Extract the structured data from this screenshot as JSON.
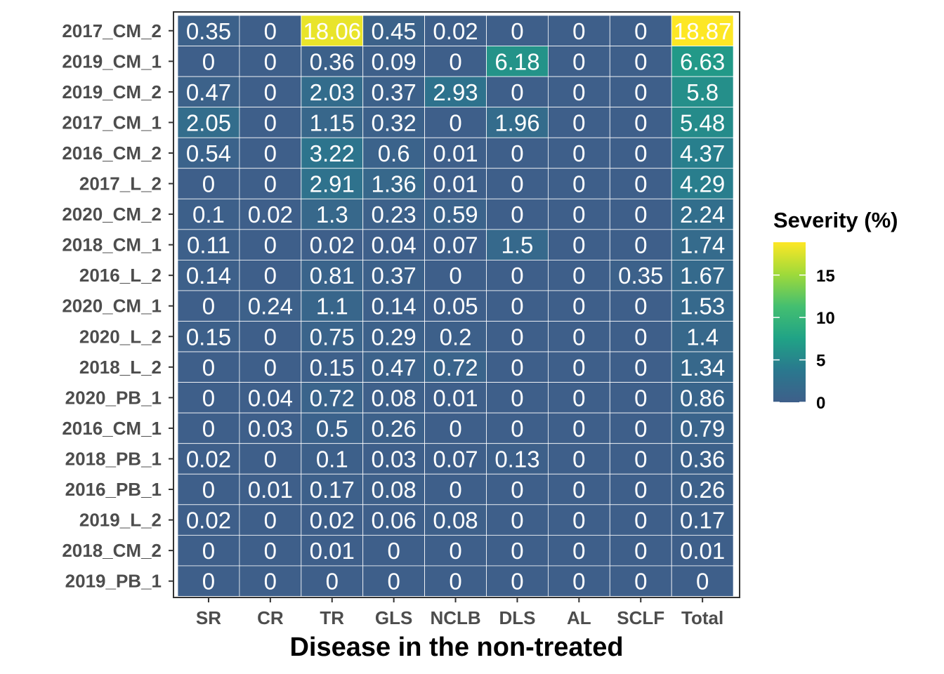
{
  "chart_data": {
    "type": "heatmap",
    "xlabel": "Disease in the non-treated",
    "ylabel": "",
    "x_categories": [
      "SR",
      "CR",
      "TR",
      "GLS",
      "NCLB",
      "DLS",
      "AL",
      "SCLF",
      "Total"
    ],
    "y_categories": [
      "2017_CM_2",
      "2019_CM_1",
      "2019_CM_2",
      "2017_CM_1",
      "2016_CM_2",
      "2017_L_2",
      "2020_CM_2",
      "2018_CM_1",
      "2016_L_2",
      "2020_CM_1",
      "2020_L_2",
      "2018_L_2",
      "2020_PB_1",
      "2016_CM_1",
      "2018_PB_1",
      "2016_PB_1",
      "2019_L_2",
      "2018_CM_2",
      "2019_PB_1"
    ],
    "cells": [
      [
        "0.35",
        "0",
        "18.06",
        "0.45",
        "0.02",
        "0",
        "0",
        "0",
        "18.87"
      ],
      [
        "0",
        "0",
        "0.36",
        "0.09",
        "0",
        "6.18",
        "0",
        "0",
        "6.63"
      ],
      [
        "0.47",
        "0",
        "2.03",
        "0.37",
        "2.93",
        "0",
        "0",
        "0",
        "5.8"
      ],
      [
        "2.05",
        "0",
        "1.15",
        "0.32",
        "0",
        "1.96",
        "0",
        "0",
        "5.48"
      ],
      [
        "0.54",
        "0",
        "3.22",
        "0.6",
        "0.01",
        "0",
        "0",
        "0",
        "4.37"
      ],
      [
        "0",
        "0",
        "2.91",
        "1.36",
        "0.01",
        "0",
        "0",
        "0",
        "4.29"
      ],
      [
        "0.1",
        "0.02",
        "1.3",
        "0.23",
        "0.59",
        "0",
        "0",
        "0",
        "2.24"
      ],
      [
        "0.11",
        "0",
        "0.02",
        "0.04",
        "0.07",
        "1.5",
        "0",
        "0",
        "1.74"
      ],
      [
        "0.14",
        "0",
        "0.81",
        "0.37",
        "0",
        "0",
        "0",
        "0.35",
        "1.67"
      ],
      [
        "0",
        "0.24",
        "1.1",
        "0.14",
        "0.05",
        "0",
        "0",
        "0",
        "1.53"
      ],
      [
        "0.15",
        "0",
        "0.75",
        "0.29",
        "0.2",
        "0",
        "0",
        "0",
        "1.4"
      ],
      [
        "0",
        "0",
        "0.15",
        "0.47",
        "0.72",
        "0",
        "0",
        "0",
        "1.34"
      ],
      [
        "0",
        "0.04",
        "0.72",
        "0.08",
        "0.01",
        "0",
        "0",
        "0",
        "0.86"
      ],
      [
        "0",
        "0.03",
        "0.5",
        "0.26",
        "0",
        "0",
        "0",
        "0",
        "0.79"
      ],
      [
        "0.02",
        "0",
        "0.1",
        "0.03",
        "0.07",
        "0.13",
        "0",
        "0",
        "0.36"
      ],
      [
        "0",
        "0.01",
        "0.17",
        "0.08",
        "0",
        "0",
        "0",
        "0",
        "0.26"
      ],
      [
        "0.02",
        "0",
        "0.02",
        "0.06",
        "0.08",
        "0",
        "0",
        "0",
        "0.17"
      ],
      [
        "0",
        "0",
        "0.01",
        "0",
        "0",
        "0",
        "0",
        "0",
        "0.01"
      ],
      [
        "0",
        "0",
        "0",
        "0",
        "0",
        "0",
        "0",
        "0",
        "0"
      ]
    ],
    "legend": {
      "title": "Severity (%)",
      "position": "right",
      "range": [
        0,
        18.87
      ],
      "ticks": [
        0,
        5,
        10,
        15
      ],
      "colors": [
        "#3e5f8a",
        "#2a788e",
        "#20a386",
        "#44bf70",
        "#9fda3a",
        "#fde725"
      ]
    }
  }
}
